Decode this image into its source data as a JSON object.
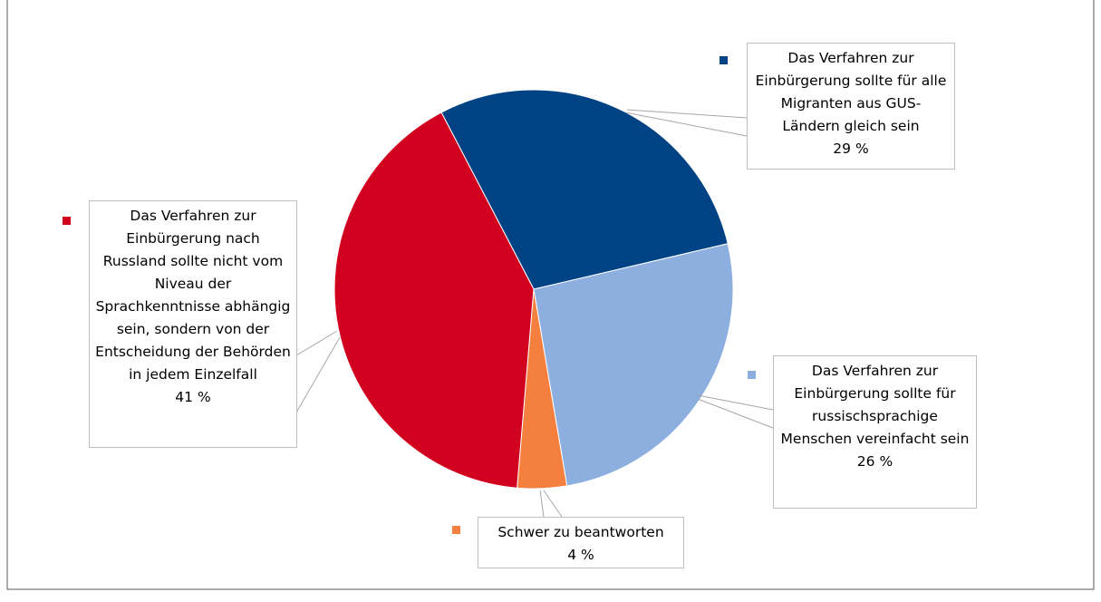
{
  "chart_data": {
    "type": "pie",
    "categories": [
      "Das Verfahren zur Einbürgerung sollte für alle Migranten aus GUS-Ländern gleich sein",
      "Das Verfahren zur Einbürgerung sollte für russischsprachige Menschen vereinfacht sein",
      "Schwer zu beantworten",
      "Das Verfahren zur Einbürgerung nach Russland sollte nicht vom Niveau der Sprachkenntnisse abhängig sein, sondern von der Entscheidung der Behörden in jedem Einzelfall"
    ],
    "values": [
      29,
      26,
      4,
      41
    ],
    "value_labels": [
      "29 %",
      "26 %",
      "4 %",
      "41 %"
    ],
    "colors": [
      "#004384",
      "#8cafe0",
      "#f57f3f",
      "#d2001f"
    ]
  }
}
